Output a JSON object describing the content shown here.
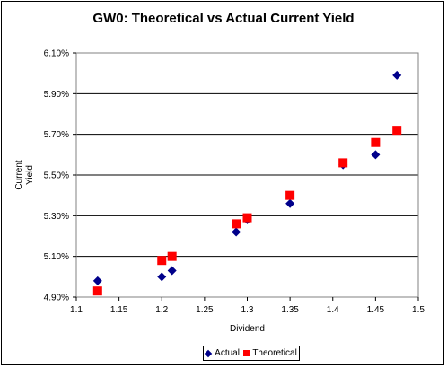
{
  "chart_data": {
    "type": "scatter",
    "title": "GW0: Theoretical vs Actual Current Yield",
    "xlabel": "Dividend",
    "ylabel": [
      "Current",
      "Yield"
    ],
    "xlim": [
      1.1,
      1.5
    ],
    "ylim": [
      4.9,
      6.1
    ],
    "x_ticks": [
      "1.1",
      "1.15",
      "1.2",
      "1.25",
      "1.3",
      "1.35",
      "1.4",
      "1.45",
      "1.5"
    ],
    "y_ticks": [
      "4.90%",
      "5.10%",
      "5.30%",
      "5.50%",
      "5.70%",
      "5.90%",
      "6.10%"
    ],
    "grid": "horizontal",
    "legend_position": "bottom",
    "series": [
      {
        "name": "Actual",
        "marker": "diamond",
        "color": "#00008b",
        "points": [
          {
            "x": 1.125,
            "y": 4.98
          },
          {
            "x": 1.2,
            "y": 5.0
          },
          {
            "x": 1.212,
            "y": 5.03
          },
          {
            "x": 1.287,
            "y": 5.22
          },
          {
            "x": 1.3,
            "y": 5.28
          },
          {
            "x": 1.35,
            "y": 5.36
          },
          {
            "x": 1.412,
            "y": 5.55
          },
          {
            "x": 1.45,
            "y": 5.6
          },
          {
            "x": 1.475,
            "y": 5.99
          }
        ]
      },
      {
        "name": "Theoretical",
        "marker": "square",
        "color": "#ff0000",
        "points": [
          {
            "x": 1.125,
            "y": 4.93
          },
          {
            "x": 1.2,
            "y": 5.08
          },
          {
            "x": 1.212,
            "y": 5.1
          },
          {
            "x": 1.287,
            "y": 5.26
          },
          {
            "x": 1.3,
            "y": 5.29
          },
          {
            "x": 1.35,
            "y": 5.4
          },
          {
            "x": 1.412,
            "y": 5.56
          },
          {
            "x": 1.45,
            "y": 5.66
          },
          {
            "x": 1.475,
            "y": 5.72
          }
        ]
      }
    ]
  }
}
